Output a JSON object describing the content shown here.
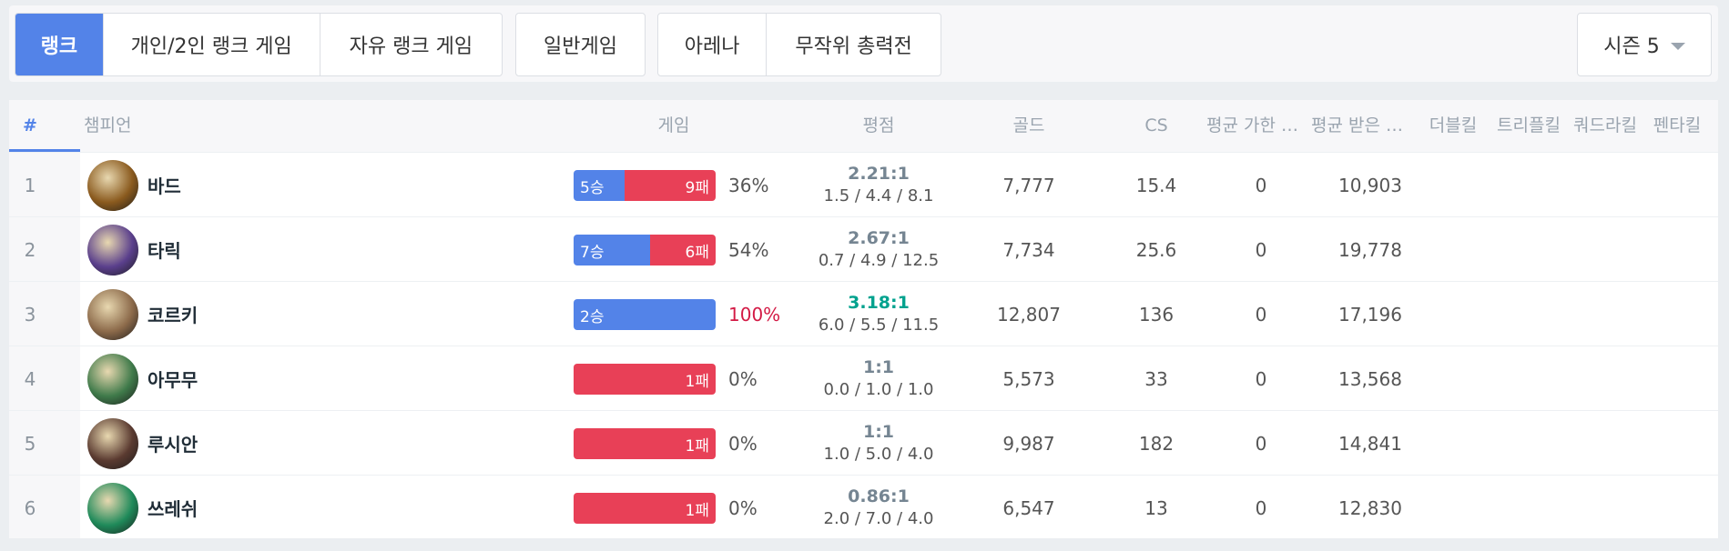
{
  "tabs": {
    "ranked": "랭크",
    "solo_duo": "개인/2인 랭크 게임",
    "flex": "자유 랭크 게임",
    "normal": "일반게임",
    "arena": "아레나",
    "aram": "무작위 총력전"
  },
  "season": {
    "label": "시즌 5"
  },
  "columns": {
    "num": "#",
    "champion": "챔피언",
    "games": "게임",
    "kda": "평점",
    "gold": "골드",
    "cs": "CS",
    "damage_dealt": "평균 가한 피해량",
    "damage_taken": "평균 받은 피해량",
    "double": "더블킬",
    "triple": "트리플킬",
    "quadra": "쿼드라킬",
    "penta": "펜타킬"
  },
  "rows": [
    {
      "rank": "1",
      "name": "바드",
      "icon": "bard-avatar",
      "wins": 5,
      "losses": 9,
      "win_label": "5승",
      "loss_label": "9패",
      "winrate": "36%",
      "kda_ratio": "2.21:1",
      "kda_detail": "1.5 / 4.4  / 8.1",
      "gold": "7,777",
      "cs": "15.4",
      "dealt": "0",
      "taken": "10,903",
      "color": "#8a5a1e"
    },
    {
      "rank": "2",
      "name": "타릭",
      "icon": "taric-avatar",
      "wins": 7,
      "losses": 6,
      "win_label": "7승",
      "loss_label": "6패",
      "winrate": "54%",
      "kda_ratio": "2.67:1",
      "kda_detail": "0.7 / 4.9  / 12.5",
      "gold": "7,734",
      "cs": "25.6",
      "dealt": "0",
      "taken": "19,778",
      "color": "#5a3f8c"
    },
    {
      "rank": "3",
      "name": "코르키",
      "icon": "corki-avatar",
      "wins": 2,
      "losses": 0,
      "win_label": "2승",
      "loss_label": "",
      "winrate": "100%",
      "kda_ratio": "3.18:1",
      "kda_detail": "6.0 / 5.5  / 11.5",
      "gold": "12,807",
      "cs": "136",
      "dealt": "0",
      "taken": "17,196",
      "color": "#8c6a4a"
    },
    {
      "rank": "4",
      "name": "아무무",
      "icon": "amumu-avatar",
      "wins": 0,
      "losses": 1,
      "win_label": "",
      "loss_label": "1패",
      "winrate": "0%",
      "kda_ratio": "1:1",
      "kda_detail": "0.0 / 1.0  / 1.0",
      "gold": "5,573",
      "cs": "33",
      "dealt": "0",
      "taken": "13,568",
      "color": "#3f7a4a"
    },
    {
      "rank": "5",
      "name": "루시안",
      "icon": "lucian-avatar",
      "wins": 0,
      "losses": 1,
      "win_label": "",
      "loss_label": "1패",
      "winrate": "0%",
      "kda_ratio": "1:1",
      "kda_detail": "1.0 / 5.0  / 4.0",
      "gold": "9,987",
      "cs": "182",
      "dealt": "0",
      "taken": "14,841",
      "color": "#5a3a30"
    },
    {
      "rank": "6",
      "name": "쓰레쉬",
      "icon": "thresh-avatar",
      "wins": 0,
      "losses": 1,
      "win_label": "",
      "loss_label": "1패",
      "winrate": "0%",
      "kda_ratio": "0.86:1",
      "kda_detail": "2.0 / 7.0  / 4.0",
      "gold": "6,547",
      "cs": "13",
      "dealt": "0",
      "taken": "12,830",
      "color": "#1f8a5a"
    }
  ]
}
